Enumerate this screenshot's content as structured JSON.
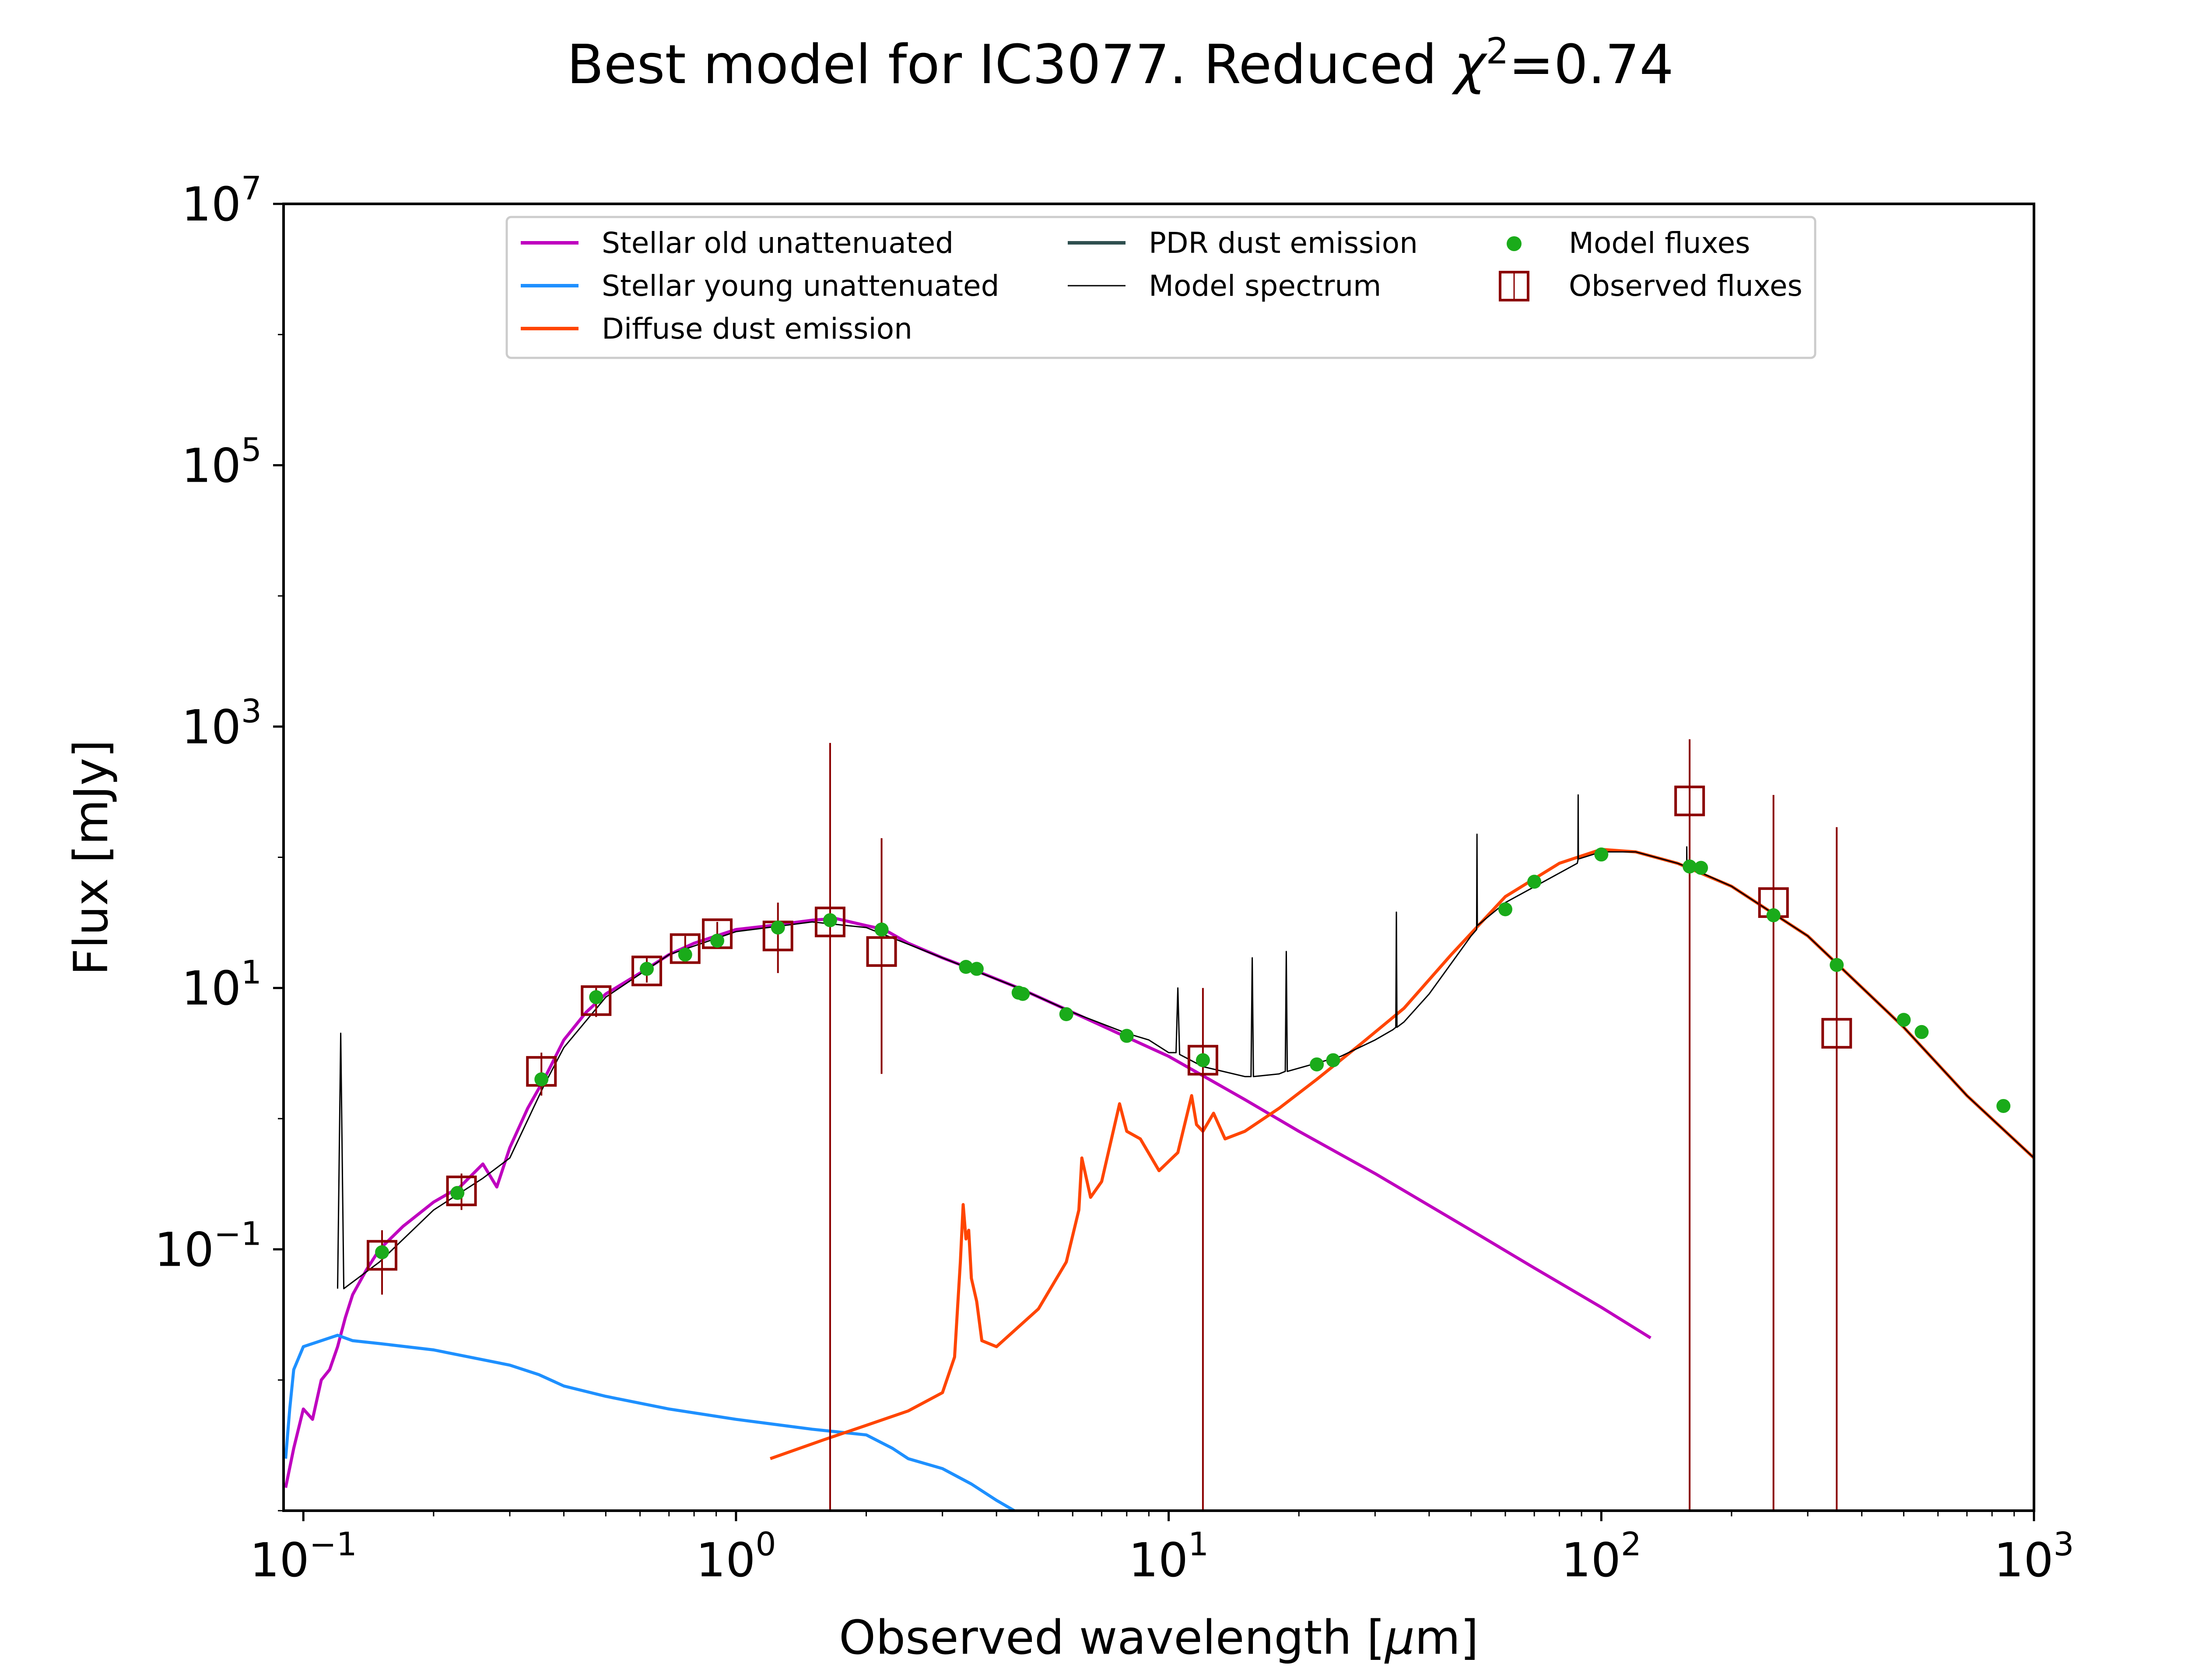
{
  "chart_data": {
    "type": "line",
    "title_prefix": "Best model for IC3077. Reduced ",
    "title_chi_symbol": "χ",
    "title_chi_exp": "2",
    "title_suffix": "=0.74",
    "xlabel_prefix": "Observed wavelength [",
    "xlabel_mu": "μ",
    "xlabel_suffix": "m]",
    "ylabel": "Flux [mJy]",
    "x_scale": "log",
    "y_scale": "log",
    "xlim": [
      0.09,
      1000
    ],
    "ylim": [
      0.001,
      10000000
    ],
    "grid": false,
    "legend_position": "top-center",
    "x_ticks": [
      {
        "base": "10",
        "exp": "−1",
        "value": 0.1
      },
      {
        "base": "10",
        "exp": "0",
        "value": 1
      },
      {
        "base": "10",
        "exp": "1",
        "value": 10
      },
      {
        "base": "10",
        "exp": "2",
        "value": 100
      },
      {
        "base": "10",
        "exp": "3",
        "value": 1000
      }
    ],
    "y_ticks": [
      {
        "base": "10",
        "exp": "−1",
        "value": 0.1
      },
      {
        "base": "10",
        "exp": "1",
        "value": 10
      },
      {
        "base": "10",
        "exp": "3",
        "value": 1000
      },
      {
        "base": "10",
        "exp": "5",
        "value": 100000
      },
      {
        "base": "10",
        "exp": "7",
        "value": 10000000
      }
    ],
    "series": [
      {
        "name": "Stellar old unattenuated",
        "color": "#bf00bf",
        "points": [
          [
            0.091,
            0.0015
          ],
          [
            0.095,
            0.003
          ],
          [
            0.1,
            0.006
          ],
          [
            0.105,
            0.005
          ],
          [
            0.11,
            0.01
          ],
          [
            0.115,
            0.012
          ],
          [
            0.12,
            0.018
          ],
          [
            0.125,
            0.03
          ],
          [
            0.13,
            0.045
          ],
          [
            0.14,
            0.07
          ],
          [
            0.15,
            0.1
          ],
          [
            0.17,
            0.15
          ],
          [
            0.2,
            0.23
          ],
          [
            0.23,
            0.3
          ],
          [
            0.26,
            0.45
          ],
          [
            0.28,
            0.3
          ],
          [
            0.3,
            0.6
          ],
          [
            0.33,
            1.2
          ],
          [
            0.36,
            2.0
          ],
          [
            0.4,
            4.0
          ],
          [
            0.45,
            6.5
          ],
          [
            0.5,
            9.0
          ],
          [
            0.6,
            13
          ],
          [
            0.7,
            18
          ],
          [
            0.8,
            22
          ],
          [
            0.9,
            25
          ],
          [
            1.0,
            28
          ],
          [
            1.2,
            30
          ],
          [
            1.5,
            33
          ],
          [
            1.7,
            34
          ],
          [
            2.0,
            30
          ],
          [
            2.2,
            28
          ],
          [
            2.5,
            22
          ],
          [
            3.0,
            17
          ],
          [
            3.5,
            14
          ],
          [
            4.5,
            10
          ],
          [
            6.0,
            6.5
          ],
          [
            8.0,
            4.2
          ],
          [
            10,
            3.0
          ],
          [
            15,
            1.4
          ],
          [
            20,
            0.8
          ],
          [
            30,
            0.38
          ],
          [
            50,
            0.14
          ],
          [
            70,
            0.072
          ],
          [
            100,
            0.036
          ],
          [
            130,
            0.021
          ]
        ]
      },
      {
        "name": "Stellar young unattenuated",
        "color": "#1e90ff",
        "points": [
          [
            0.091,
            0.0025
          ],
          [
            0.093,
            0.006
          ],
          [
            0.095,
            0.012
          ],
          [
            0.1,
            0.018
          ],
          [
            0.11,
            0.02
          ],
          [
            0.12,
            0.022
          ],
          [
            0.13,
            0.02
          ],
          [
            0.15,
            0.019
          ],
          [
            0.2,
            0.017
          ],
          [
            0.3,
            0.013
          ],
          [
            0.35,
            0.011
          ],
          [
            0.4,
            0.009
          ],
          [
            0.5,
            0.0075
          ],
          [
            0.7,
            0.006
          ],
          [
            1.0,
            0.005
          ],
          [
            1.5,
            0.0042
          ],
          [
            2.0,
            0.0038
          ],
          [
            2.3,
            0.003
          ],
          [
            2.5,
            0.0025
          ],
          [
            3.0,
            0.0021
          ],
          [
            3.5,
            0.0016
          ],
          [
            4.0,
            0.0012
          ],
          [
            4.4,
            0.001
          ]
        ]
      },
      {
        "name": "Diffuse dust emission",
        "color": "#ff4500",
        "points": [
          [
            1.2,
            0.0025
          ],
          [
            1.6,
            0.0035
          ],
          [
            2.0,
            0.0045
          ],
          [
            2.5,
            0.0058
          ],
          [
            3.0,
            0.008
          ],
          [
            3.2,
            0.015
          ],
          [
            3.3,
            0.08
          ],
          [
            3.35,
            0.22
          ],
          [
            3.4,
            0.12
          ],
          [
            3.45,
            0.14
          ],
          [
            3.5,
            0.06
          ],
          [
            3.6,
            0.04
          ],
          [
            3.7,
            0.02
          ],
          [
            4.0,
            0.018
          ],
          [
            5.0,
            0.035
          ],
          [
            5.8,
            0.08
          ],
          [
            6.2,
            0.2
          ],
          [
            6.3,
            0.5
          ],
          [
            6.6,
            0.25
          ],
          [
            7.0,
            0.33
          ],
          [
            7.7,
            1.3
          ],
          [
            8.0,
            0.8
          ],
          [
            8.6,
            0.7
          ],
          [
            9.5,
            0.4
          ],
          [
            10.5,
            0.55
          ],
          [
            11.3,
            1.5
          ],
          [
            11.6,
            0.9
          ],
          [
            12.0,
            0.8
          ],
          [
            12.7,
            1.1
          ],
          [
            13.5,
            0.7
          ],
          [
            15,
            0.8
          ],
          [
            18,
            1.2
          ],
          [
            22,
            2.0
          ],
          [
            28,
            3.8
          ],
          [
            35,
            7.0
          ],
          [
            45,
            18
          ],
          [
            60,
            50
          ],
          [
            80,
            90
          ],
          [
            100,
            115
          ],
          [
            120,
            110
          ],
          [
            150,
            90
          ],
          [
            200,
            60
          ],
          [
            300,
            25
          ],
          [
            500,
            5.0
          ],
          [
            700,
            1.5
          ],
          [
            1000,
            0.5
          ]
        ]
      },
      {
        "name": "PDR dust emission",
        "color": "#2f4f4f",
        "points": []
      },
      {
        "name": "Model spectrum",
        "color": "#000000",
        "points": [
          [
            0.12,
            0.05
          ],
          [
            0.122,
            4.5
          ],
          [
            0.124,
            0.05
          ],
          [
            0.15,
            0.08
          ],
          [
            0.2,
            0.2
          ],
          [
            0.26,
            0.35
          ],
          [
            0.3,
            0.5
          ],
          [
            0.36,
            1.8
          ],
          [
            0.4,
            3.5
          ],
          [
            0.5,
            8.5
          ],
          [
            0.7,
            18
          ],
          [
            1.0,
            27
          ],
          [
            1.5,
            32
          ],
          [
            2.0,
            29
          ],
          [
            3.0,
            17
          ],
          [
            4.5,
            10
          ],
          [
            6,
            6.5
          ],
          [
            8,
            4.5
          ],
          [
            9,
            4.0
          ],
          [
            10,
            3.2
          ],
          [
            10.4,
            3.2
          ],
          [
            10.5,
            10.0
          ],
          [
            10.6,
            3.1
          ],
          [
            12,
            2.5
          ],
          [
            15,
            2.1
          ],
          [
            15.5,
            2.1
          ],
          [
            15.6,
            17
          ],
          [
            15.7,
            2.1
          ],
          [
            18,
            2.2
          ],
          [
            18.6,
            2.3
          ],
          [
            18.7,
            19
          ],
          [
            18.8,
            2.3
          ],
          [
            25,
            3.0
          ],
          [
            30,
            4.0
          ],
          [
            33,
            4.8
          ],
          [
            33.5,
            5.0
          ],
          [
            33.6,
            38
          ],
          [
            33.7,
            5.0
          ],
          [
            35,
            5.5
          ],
          [
            40,
            9.0
          ],
          [
            50,
            25
          ],
          [
            51.5,
            28
          ],
          [
            51.6,
            150
          ],
          [
            51.7,
            30
          ],
          [
            60,
            45
          ],
          [
            88,
            90
          ],
          [
            88.3,
            95
          ],
          [
            88.4,
            300
          ],
          [
            88.5,
            97
          ],
          [
            100,
            110
          ],
          [
            120,
            110
          ],
          [
            150,
            90
          ],
          [
            157,
            85
          ],
          [
            157.5,
            85
          ],
          [
            157.6,
            120
          ],
          [
            157.7,
            85
          ],
          [
            200,
            60
          ],
          [
            300,
            25
          ],
          [
            500,
            5.0
          ],
          [
            700,
            1.5
          ],
          [
            1000,
            0.5
          ]
        ]
      }
    ],
    "model_fluxes": {
      "name": "Model fluxes",
      "color": "#1aab1a",
      "points": [
        [
          0.152,
          0.095
        ],
        [
          0.227,
          0.27
        ],
        [
          0.355,
          2.0
        ],
        [
          0.475,
          8.5
        ],
        [
          0.622,
          14
        ],
        [
          0.763,
          18
        ],
        [
          0.905,
          23
        ],
        [
          1.25,
          29
        ],
        [
          1.65,
          33
        ],
        [
          2.17,
          28
        ],
        [
          3.4,
          14.5
        ],
        [
          3.6,
          14
        ],
        [
          4.5,
          9.2
        ],
        [
          4.6,
          9.0
        ],
        [
          5.8,
          6.3
        ],
        [
          8.0,
          4.3
        ],
        [
          12,
          2.8
        ],
        [
          22,
          2.6
        ],
        [
          24,
          2.8
        ],
        [
          60,
          40
        ],
        [
          70,
          65
        ],
        [
          100,
          105
        ],
        [
          160,
          85
        ],
        [
          170,
          83
        ],
        [
          250,
          36
        ],
        [
          350,
          15
        ],
        [
          500,
          5.7
        ],
        [
          550,
          4.6
        ],
        [
          850,
          1.25
        ]
      ]
    },
    "observed_fluxes": {
      "name": "Observed fluxes",
      "color": "#8b0000",
      "points": [
        {
          "x": 0.152,
          "y": 0.09,
          "lo": 0.045,
          "hi": 0.14
        },
        {
          "x": 0.232,
          "y": 0.28,
          "lo": 0.2,
          "hi": 0.38
        },
        {
          "x": 0.355,
          "y": 2.3,
          "lo": 1.5,
          "hi": 3.2
        },
        {
          "x": 0.475,
          "y": 8.0,
          "lo": 6,
          "hi": 10
        },
        {
          "x": 0.622,
          "y": 13.5,
          "lo": 11,
          "hi": 17
        },
        {
          "x": 0.763,
          "y": 20,
          "lo": 16,
          "hi": 25
        },
        {
          "x": 0.905,
          "y": 26,
          "lo": 21,
          "hi": 32
        },
        {
          "x": 1.25,
          "y": 25,
          "lo": 13,
          "hi": 45
        },
        {
          "x": 1.65,
          "y": 32,
          "lo": 0.001,
          "hi": 750
        },
        {
          "x": 2.17,
          "y": 19,
          "lo": 2.2,
          "hi": 140
        },
        {
          "x": 12,
          "y": 2.8,
          "lo": 0.001,
          "hi": 10
        },
        {
          "x": 160,
          "y": 270,
          "lo": 0.001,
          "hi": 800
        },
        {
          "x": 250,
          "y": 45,
          "lo": 0.001,
          "hi": 300
        },
        {
          "x": 350,
          "y": 4.5,
          "lo": 0.001,
          "hi": 170
        }
      ]
    }
  }
}
